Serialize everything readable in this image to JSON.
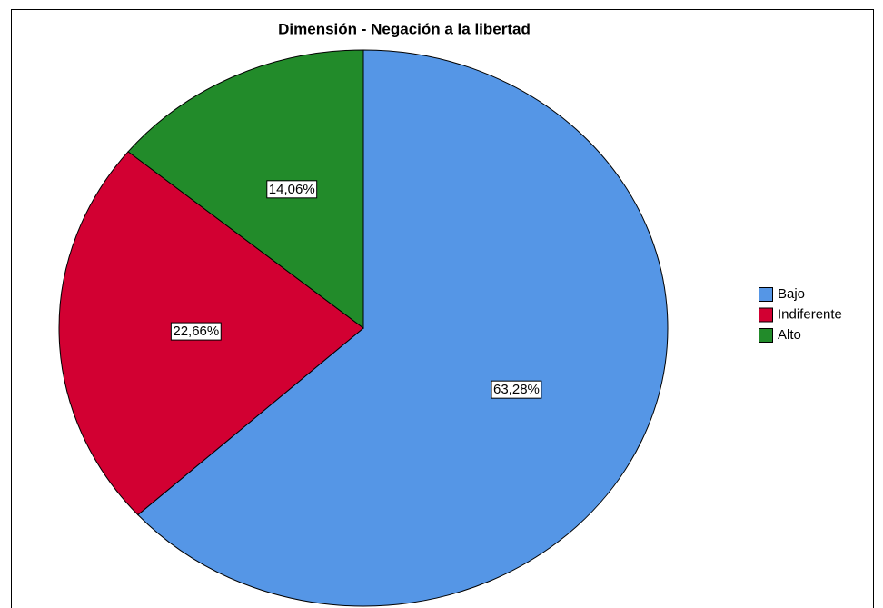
{
  "chart_data": {
    "type": "pie",
    "title": "Dimensión - Negación a la libertad",
    "categories": [
      "Bajo",
      "Indiferente",
      "Alto"
    ],
    "values": [
      63.28,
      22.66,
      14.06
    ],
    "value_labels": [
      "63,28%",
      "22,66%",
      "14,06%"
    ],
    "colors": [
      "#5596e6",
      "#d20032",
      "#228b2a"
    ],
    "legend": "right"
  }
}
